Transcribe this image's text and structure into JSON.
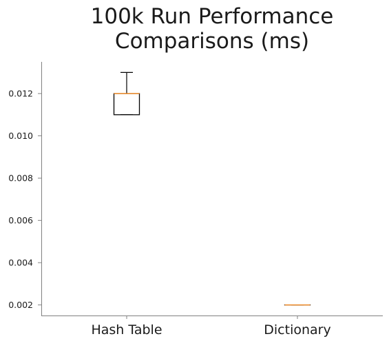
{
  "chart_data": {
    "type": "box",
    "title_lines": [
      "100k Run Performance",
      "Comparisons (ms)"
    ],
    "categories": [
      "Hash Table",
      "Dictionary"
    ],
    "boxes": [
      {
        "name": "Hash Table",
        "whislo": 0.011,
        "q1": 0.011,
        "median": 0.012,
        "q3": 0.012,
        "whishi": 0.013
      },
      {
        "name": "Dictionary",
        "whislo": 0.002,
        "q1": 0.002,
        "median": 0.002,
        "q3": 0.002,
        "whishi": 0.002
      }
    ],
    "yticks": [
      "0.002",
      "0.004",
      "0.006",
      "0.008",
      "0.010",
      "0.012"
    ],
    "ylim": [
      0.0015,
      0.0135
    ],
    "grid": false,
    "colors": {
      "box": "#000000",
      "median": "#f28e2b",
      "axis": "#808080"
    }
  }
}
